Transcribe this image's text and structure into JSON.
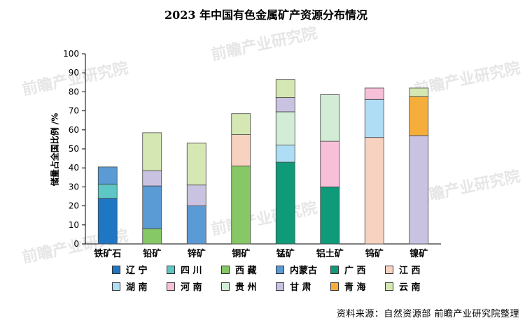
{
  "chart_data": {
    "type": "bar",
    "stacked": true,
    "title": "2023 年中国有色金属矿产资源分布情况",
    "ylabel": "储量占全国比例 /%",
    "xlabel": "",
    "ylim": [
      0,
      100
    ],
    "yticks": [
      0,
      10,
      20,
      30,
      40,
      50,
      60,
      70,
      80,
      90,
      100
    ],
    "categories": [
      "铁矿石",
      "铅矿",
      "锌矿",
      "铜矿",
      "锰矿",
      "铝土矿",
      "钨矿",
      "镍矿"
    ],
    "series": [
      {
        "name": "辽 宁",
        "color": "#1F77C4",
        "values": [
          24,
          0,
          0,
          0,
          0,
          0,
          0,
          0
        ]
      },
      {
        "name": "四 川",
        "color": "#5FC6C6",
        "values": [
          7.5,
          0,
          0,
          0,
          0,
          0,
          0,
          0
        ]
      },
      {
        "name": "西 藏",
        "color": "#86C766",
        "values": [
          0,
          8,
          0,
          41,
          0,
          0,
          0,
          0
        ]
      },
      {
        "name": "内蒙古",
        "color": "#5B9BD5",
        "values": [
          9,
          22.5,
          20,
          0,
          0,
          0,
          0,
          0
        ]
      },
      {
        "name": "广 西",
        "color": "#0F9A7A",
        "values": [
          0,
          0,
          0,
          0,
          43,
          30,
          0,
          0
        ]
      },
      {
        "name": "江 西",
        "color": "#F8D2C0",
        "values": [
          0,
          0,
          0,
          16.5,
          0,
          0,
          56,
          0
        ]
      },
      {
        "name": "湖 南",
        "color": "#AEDDF5",
        "values": [
          0,
          0,
          0,
          0,
          9,
          0,
          20,
          0
        ]
      },
      {
        "name": "河 南",
        "color": "#F8BFD8",
        "values": [
          0,
          0,
          0,
          0,
          0,
          24,
          6,
          0
        ]
      },
      {
        "name": "贵 州",
        "color": "#D3ECD6",
        "values": [
          0,
          0,
          0,
          0,
          17.5,
          24.5,
          0,
          0
        ]
      },
      {
        "name": "甘 肃",
        "color": "#C9C2E0",
        "values": [
          0,
          8,
          11,
          0,
          7.5,
          0,
          0,
          57
        ]
      },
      {
        "name": "青 海",
        "color": "#F6AE3A",
        "values": [
          0,
          0,
          0,
          0,
          0,
          0,
          0,
          20.5
        ]
      },
      {
        "name": "云 南",
        "color": "#D5E8B4",
        "values": [
          0,
          20,
          22,
          11,
          9.5,
          0,
          0,
          4.5
        ]
      }
    ]
  },
  "watermark": "前瞻产业研究院",
  "source": "资料来源：自然资源部 前瞻产业研究院整理"
}
